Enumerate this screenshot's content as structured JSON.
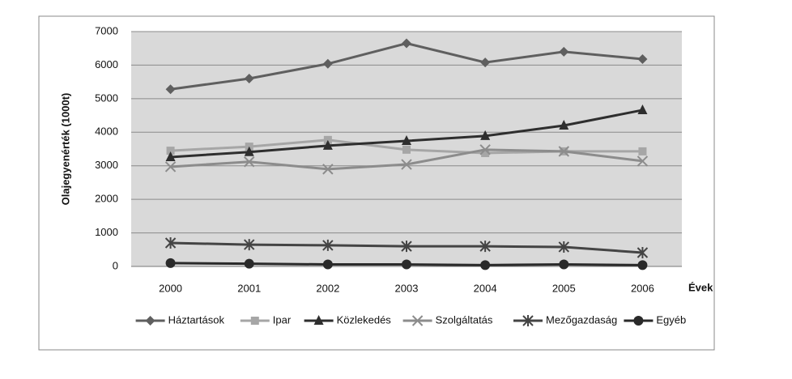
{
  "chart_data": {
    "type": "line",
    "x_label": "Évek",
    "y_label": "Olajegyenérték (1000t)",
    "categories": [
      "2000",
      "2001",
      "2002",
      "2003",
      "2004",
      "2005",
      "2006"
    ],
    "ylim": [
      0,
      7000
    ],
    "yticks": [
      0,
      1000,
      2000,
      3000,
      4000,
      5000,
      6000,
      7000
    ],
    "grid": true,
    "legend": "bottom",
    "series": [
      {
        "name": "Háztartások",
        "color": "#5f5f5f",
        "marker": "diamond",
        "values": [
          5280,
          5600,
          6040,
          6650,
          6080,
          6400,
          6180
        ]
      },
      {
        "name": "Ipar",
        "color": "#a6a6a6",
        "marker": "square",
        "values": [
          3450,
          3570,
          3770,
          3480,
          3380,
          3430,
          3430
        ]
      },
      {
        "name": "Közlekedés",
        "color": "#2e2e2e",
        "marker": "triangle",
        "values": [
          3260,
          3410,
          3600,
          3740,
          3890,
          4200,
          4660
        ]
      },
      {
        "name": "Szolgáltatás",
        "color": "#8c8c8c",
        "marker": "x",
        "values": [
          2970,
          3120,
          2900,
          3040,
          3480,
          3430,
          3140
        ]
      },
      {
        "name": "Mezőgazdaság",
        "color": "#444444",
        "marker": "star",
        "values": [
          700,
          650,
          630,
          600,
          600,
          580,
          410
        ]
      },
      {
        "name": "Egyéb",
        "color": "#2a2a2a",
        "marker": "circle",
        "values": [
          100,
          80,
          60,
          60,
          40,
          60,
          40
        ]
      }
    ]
  }
}
